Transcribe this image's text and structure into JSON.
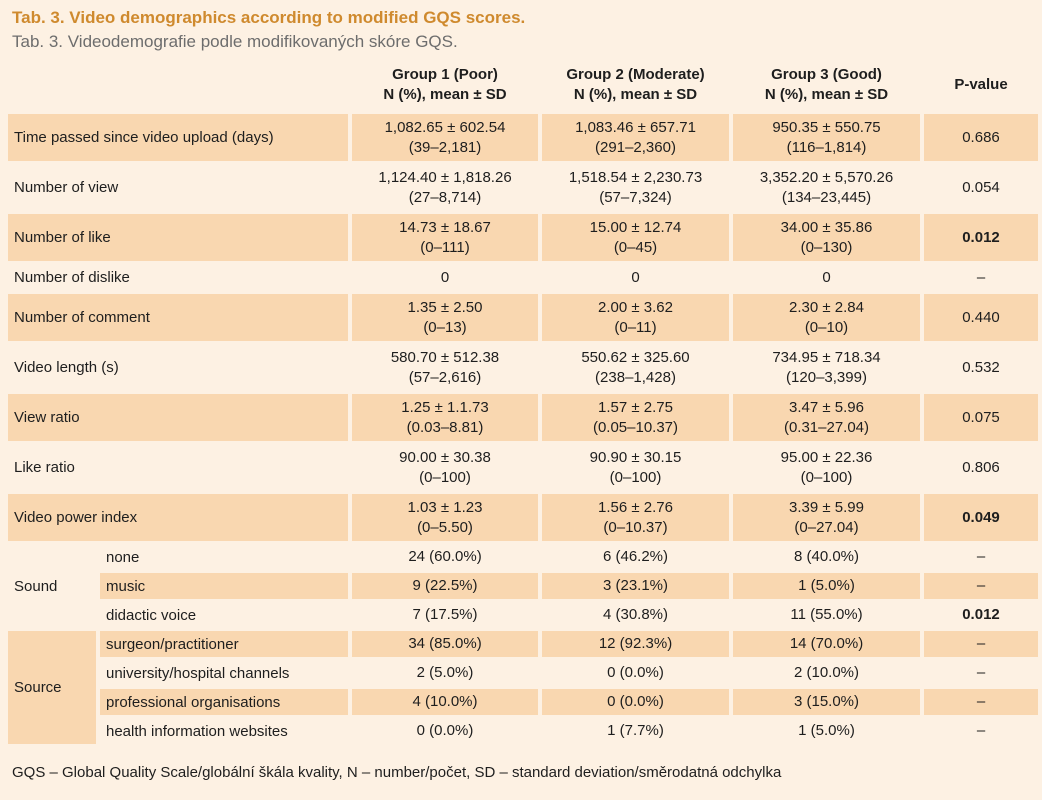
{
  "title_en": "Tab. 3. Video demographics according to modified GQS scores.",
  "title_cz": "Tab. 3. Videodemografie podle modifikovaných skóre GQS.",
  "headers": {
    "g1": [
      "Group 1 (Poor)",
      "N (%), mean ± SD"
    ],
    "g2": [
      "Group 2 (Moderate)",
      "N (%), mean ± SD"
    ],
    "g3": [
      "Group 3 (Good)",
      "N (%), mean ± SD"
    ],
    "p": "P-value"
  },
  "rows": [
    {
      "label": "Time passed since video upload (days)",
      "g1": [
        "1,082.65 ± 602.54",
        "(39–2,181)"
      ],
      "g2": [
        "1,083.46 ± 657.71",
        "(291–2,360)"
      ],
      "g3": [
        "950.35 ± 550.75",
        "(116–1,814)"
      ],
      "p": "0.686"
    },
    {
      "label": "Number of view",
      "g1": [
        "1,124.40 ± 1,818.26",
        "(27–8,714)"
      ],
      "g2": [
        "1,518.54 ± 2,230.73",
        "(57–7,324)"
      ],
      "g3": [
        "3,352.20 ± 5,570.26",
        "(134–23,445)"
      ],
      "p": "0.054"
    },
    {
      "label": "Number of like",
      "g1": [
        "14.73 ± 18.67",
        "(0–111)"
      ],
      "g2": [
        "15.00 ± 12.74",
        "(0–45)"
      ],
      "g3": [
        "34.00 ± 35.86",
        "(0–130)"
      ],
      "p": "0.012"
    },
    {
      "label": "Number of dislike",
      "g1": "0",
      "g2": "0",
      "g3": "0",
      "p": "–"
    },
    {
      "label": "Number of comment",
      "g1": [
        "1.35 ± 2.50",
        "(0–13)"
      ],
      "g2": [
        "2.00 ± 3.62",
        "(0–11)"
      ],
      "g3": [
        "2.30 ± 2.84",
        "(0–10)"
      ],
      "p": "0.440"
    },
    {
      "label": "Video length (s)",
      "g1": [
        "580.70 ± 512.38",
        "(57–2,616)"
      ],
      "g2": [
        "550.62 ± 325.60",
        "(238–1,428)"
      ],
      "g3": [
        "734.95 ± 718.34",
        "(120–3,399)"
      ],
      "p": "0.532"
    },
    {
      "label": "View ratio",
      "g1": [
        "1.25 ± 1.1.73",
        "(0.03–8.81)"
      ],
      "g2": [
        "1.57 ± 2.75",
        "(0.05–10.37)"
      ],
      "g3": [
        "3.47 ± 5.96",
        "(0.31–27.04)"
      ],
      "p": "0.075"
    },
    {
      "label": "Like ratio",
      "g1": [
        "90.00 ± 30.38",
        "(0–100)"
      ],
      "g2": [
        "90.90 ± 30.15",
        "(0–100)"
      ],
      "g3": [
        "95.00 ± 22.36",
        "(0–100)"
      ],
      "p": "0.806"
    },
    {
      "label": "Video power index",
      "g1": [
        "1.03 ± 1.23",
        "(0–5.50)"
      ],
      "g2": [
        "1.56 ± 2.76",
        "(0–10.37)"
      ],
      "g3": [
        "3.39 ± 5.99",
        "(0–27.04)"
      ],
      "p": "0.049"
    }
  ],
  "sound": {
    "label": "Sound",
    "items": [
      {
        "label": "none",
        "g1": "24 (60.0%)",
        "g2": "6 (46.2%)",
        "g3": "8 (40.0%)",
        "p": "–"
      },
      {
        "label": "music",
        "g1": "9 (22.5%)",
        "g2": "3 (23.1%)",
        "g3": "1 (5.0%)",
        "p": "–"
      },
      {
        "label": "didactic voice",
        "g1": "7 (17.5%)",
        "g2": "4 (30.8%)",
        "g3": "11 (55.0%)",
        "p": "0.012"
      }
    ]
  },
  "source": {
    "label": "Source",
    "items": [
      {
        "label": "surgeon/practitioner",
        "g1": "34 (85.0%)",
        "g2": "12 (92.3%)",
        "g3": "14 (70.0%)",
        "p": "–"
      },
      {
        "label": "university/hospital channels",
        "g1": "2 (5.0%)",
        "g2": "0 (0.0%)",
        "g3": "2 (10.0%)",
        "p": "–"
      },
      {
        "label": "professional organisations",
        "g1": "4 (10.0%)",
        "g2": "0 (0.0%)",
        "g3": "3 (15.0%)",
        "p": "–"
      },
      {
        "label": "health information websites",
        "g1": "0 (0.0%)",
        "g2": "1 (7.7%)",
        "g3": "1 (5.0%)",
        "p": "–"
      }
    ]
  },
  "footnote": "GQS – Global Quality Scale/globální škála kvality, N – number/počet, SD – standard deviation/směrodatná odchylka"
}
